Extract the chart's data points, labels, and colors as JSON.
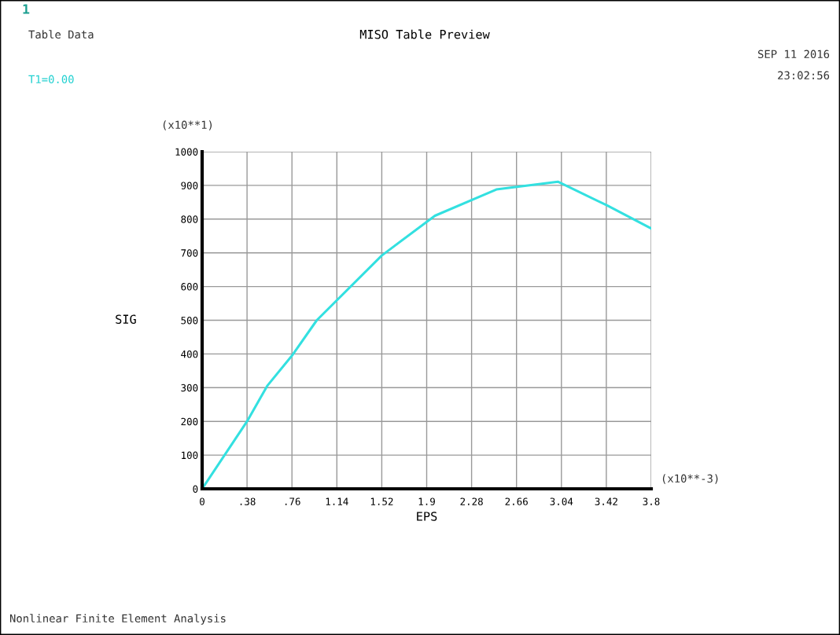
{
  "chart_data": {
    "type": "line",
    "title": "MISO Table Preview",
    "xlabel": "EPS",
    "ylabel": "SIG",
    "annotations": [
      "1",
      "Table Data",
      "T1=0.00",
      "SEP 11 2016",
      "23:02:56",
      "(x10**1)",
      "(x10**-3)",
      "Nonlinear Finite Element Analysis"
    ],
    "x": [
      0,
      0.38,
      0.55,
      0.76,
      0.97,
      1.52,
      1.97,
      2.49,
      3.01,
      3.43,
      3.8
    ],
    "series": [
      {
        "color": "#33e0e0",
        "values": [
          0,
          200,
          305,
          395,
          500,
          692,
          810,
          888,
          911,
          840,
          772
        ]
      }
    ],
    "xlim": [
      0,
      3.8
    ],
    "ylim": [
      0,
      1000
    ],
    "xticks": [
      0,
      {
        "value": 0.38,
        "label": ".38"
      },
      {
        "value": 0.76,
        "label": ".76"
      },
      1.14,
      1.52,
      1.9,
      2.28,
      2.66,
      3.04,
      3.42,
      3.8
    ],
    "yticks": [
      0,
      100,
      200,
      300,
      400,
      500,
      600,
      700,
      800,
      900,
      1000
    ],
    "grid": true,
    "marker": "none",
    "line_style": "solid",
    "legend": false
  }
}
